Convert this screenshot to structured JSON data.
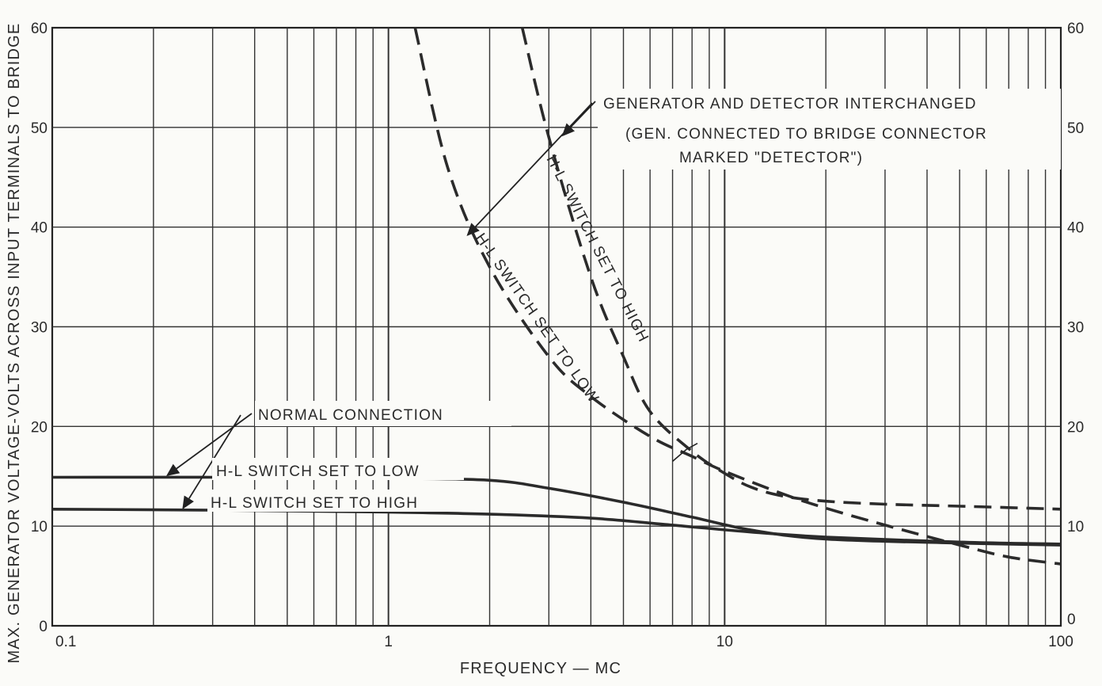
{
  "chart_data": {
    "type": "line",
    "x_scale": "log",
    "xlim": [
      0.1,
      100
    ],
    "ylim": [
      0,
      60
    ],
    "grid": true,
    "xlabel": "FREQUENCY — MC",
    "ylabel": "MAX. GENERATOR VOLTAGE-VOLTS ACROSS INPUT TERMINALS TO BRIDGE",
    "x_tick_labels": [
      "0.1",
      "1",
      "10",
      "100"
    ],
    "y_tick_labels_left": [
      "0",
      "10",
      "20",
      "30",
      "40",
      "50",
      "60"
    ],
    "y_tick_labels_right": [
      "0",
      "10",
      "20",
      "30",
      "40",
      "50",
      "60"
    ],
    "annotations": {
      "generator_interchanged": "GENERATOR AND DETECTOR INTERCHANGED",
      "gen_connected_1": "(GEN. CONNECTED TO BRIDGE CONNECTOR",
      "gen_connected_2": "MARKED \"DETECTOR\")",
      "normal_connection": "NORMAL CONNECTION",
      "hl_low": "H-L SWITCH SET TO LOW",
      "hl_high": "H-L SWITCH SET TO HIGH",
      "curve_high_label": "H-L SWITCH SET TO HIGH",
      "curve_low_label": "H-L SWITCH SET TO LOW"
    },
    "series": [
      {
        "style": "solid",
        "x": [
          0.1,
          0.3,
          1,
          2,
          3,
          5,
          8,
          12,
          20,
          50,
          100
        ],
        "y": [
          14.9,
          14.9,
          14.8,
          14.6,
          13.8,
          12.4,
          10.9,
          9.6,
          8.7,
          8.3,
          8.1
        ]
      },
      {
        "style": "solid",
        "x": [
          0.1,
          0.3,
          1,
          2,
          4,
          7,
          12,
          20,
          50,
          100
        ],
        "y": [
          11.7,
          11.6,
          11.4,
          11.2,
          10.8,
          10.1,
          9.4,
          8.9,
          8.4,
          8.2
        ]
      },
      {
        "style": "dashed",
        "x": [
          1.2,
          1.5,
          2,
          3,
          4,
          6,
          8,
          10,
          15,
          20,
          30,
          50,
          70,
          100
        ],
        "y": [
          60,
          46,
          36,
          27,
          23,
          19,
          17,
          15.5,
          13.2,
          11.8,
          10.1,
          8.1,
          6.9,
          6.2
        ]
      },
      {
        "style": "dashed",
        "x": [
          2.5,
          3,
          4,
          5,
          6,
          8,
          10,
          12,
          15,
          20,
          30,
          50,
          100
        ],
        "y": [
          60,
          49,
          35,
          27,
          21.5,
          17.5,
          15.3,
          13.9,
          13.0,
          12.5,
          12.2,
          12.0,
          11.7
        ]
      }
    ]
  }
}
